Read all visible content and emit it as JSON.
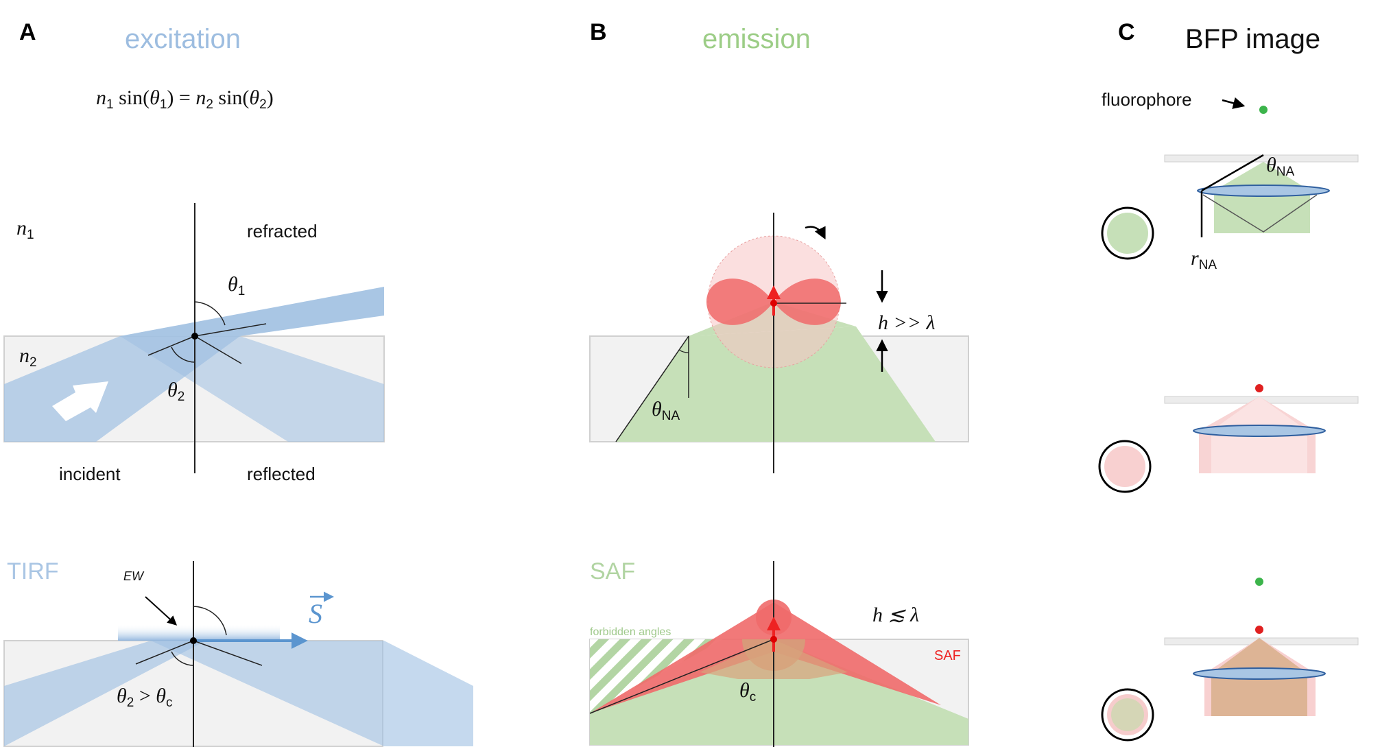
{
  "panels": {
    "A": {
      "letter": "A",
      "heading": "excitation",
      "equation": "n₁ sin(θ₁) = n₂ sin(θ₂)",
      "n1": "n",
      "n1_sub": "1",
      "n2": "n",
      "n2_sub": "2",
      "refracted": "refracted",
      "incident": "incident",
      "reflected": "reflected",
      "theta": "θ",
      "theta1_sub": "1",
      "theta2_sub": "2",
      "tirf_title": "TIRF",
      "ew": "EW",
      "poynting": "S",
      "tirf_condition": "θ₂ > θc"
    },
    "B": {
      "letter": "B",
      "heading": "emission",
      "h_far": "h >> λ",
      "theta_na": "θ",
      "na_sub": "NA",
      "saf_title": "SAF",
      "forbidden": "forbidden angles",
      "saf_label": "SAF",
      "h_near": "h ≲ λ",
      "theta_c": "θ",
      "c_sub": "c"
    },
    "C": {
      "letter": "C",
      "heading": "BFP image",
      "fluorophore": "fluorophore",
      "theta_na": "θ",
      "na_sub": "NA",
      "r_na": "r",
      "r_sub": "NA"
    }
  },
  "colors": {
    "excitation_blue": "#a9c6e4",
    "emission_green": "#a8cf95",
    "dipole_red": "#f06a6a",
    "saf_red": "#ee3322",
    "arrow_blue": "#5b95cf",
    "glass_gray": "#f2f2f2"
  }
}
